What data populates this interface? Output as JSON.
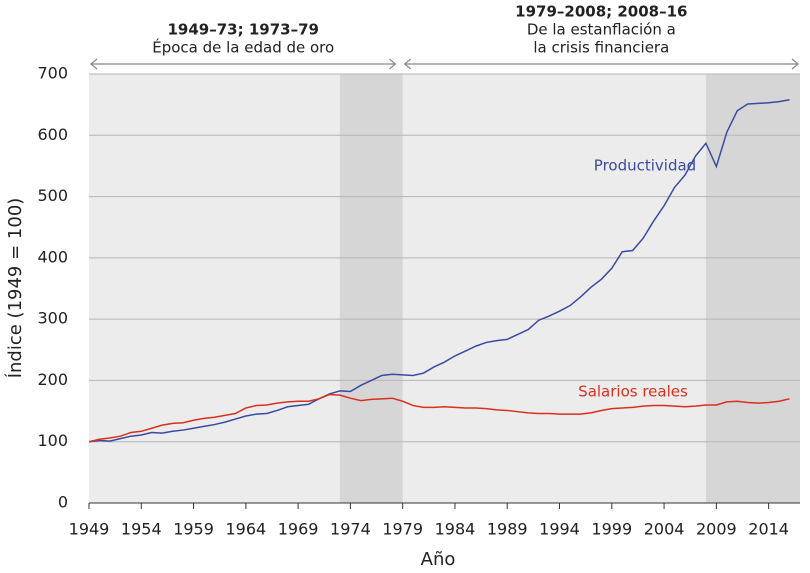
{
  "chart_data": {
    "type": "line",
    "x_label": "Año",
    "y_label": "Índice (1949 = 100)",
    "x": [
      1949,
      1950,
      1951,
      1952,
      1953,
      1954,
      1955,
      1956,
      1957,
      1958,
      1959,
      1960,
      1961,
      1962,
      1963,
      1964,
      1965,
      1966,
      1967,
      1968,
      1969,
      1970,
      1971,
      1972,
      1973,
      1974,
      1975,
      1976,
      1977,
      1978,
      1979,
      1980,
      1981,
      1982,
      1983,
      1984,
      1985,
      1986,
      1987,
      1988,
      1989,
      1990,
      1991,
      1992,
      1993,
      1994,
      1995,
      1996,
      1997,
      1998,
      1999,
      2000,
      2001,
      2002,
      2003,
      2004,
      2005,
      2006,
      2007,
      2008,
      2009,
      2010,
      2011,
      2012,
      2013,
      2014,
      2015,
      2016
    ],
    "series": [
      {
        "name": "Productividad",
        "color": "#3a4aa0",
        "values": [
          100,
          102,
          101,
          105,
          109,
          111,
          115,
          114,
          117,
          119,
          122,
          125,
          128,
          132,
          137,
          142,
          145,
          146,
          151,
          157,
          159,
          161,
          170,
          178,
          183,
          182,
          192,
          200,
          208,
          210,
          209,
          208,
          212,
          222,
          230,
          240,
          248,
          256,
          262,
          265,
          267,
          275,
          283,
          298,
          305,
          313,
          322,
          336,
          352,
          365,
          383,
          410,
          412,
          432,
          460,
          485,
          515,
          535,
          566,
          587,
          549,
          605,
          640,
          651,
          652,
          653,
          655,
          658
        ]
      },
      {
        "name": "Salarios reales",
        "color": "#d9301e",
        "values": [
          100,
          104,
          106,
          109,
          115,
          117,
          122,
          127,
          130,
          131,
          135,
          138,
          140,
          143,
          146,
          155,
          159,
          160,
          163,
          165,
          166,
          166,
          170,
          177,
          176,
          171,
          167,
          169,
          170,
          171,
          166,
          159,
          156,
          156,
          157,
          156,
          155,
          155,
          154,
          152,
          151,
          149,
          147,
          146,
          146,
          145,
          145,
          145,
          147,
          151,
          154,
          155,
          156,
          158,
          159,
          159,
          158,
          157,
          158,
          160,
          160,
          165,
          166,
          164,
          163,
          164,
          166,
          170
        ]
      }
    ],
    "xlim": [
      1949,
      2017
    ],
    "ylim": [
      0,
      700
    ],
    "xticks": [
      1949,
      1954,
      1959,
      1964,
      1969,
      1974,
      1979,
      1984,
      1989,
      1994,
      1999,
      2004,
      2009,
      2014
    ],
    "yticks": [
      0,
      100,
      200,
      300,
      400,
      500,
      600,
      700
    ],
    "grid": true,
    "shaded_periods": [
      [
        1973,
        1979
      ],
      [
        2008,
        2017
      ]
    ],
    "annotations": [
      {
        "lines": [
          "1949–73; 1973–79",
          "Época de la edad de oro"
        ],
        "span": [
          1949,
          1978.5
        ]
      },
      {
        "lines": [
          "1979–2008; 2008–16",
          "De la estanflación a",
          "la crisis financiera"
        ],
        "span": [
          1979,
          2017
        ]
      }
    ]
  }
}
